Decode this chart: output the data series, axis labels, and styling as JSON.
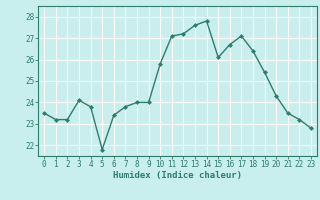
{
  "x": [
    0,
    1,
    2,
    3,
    4,
    5,
    6,
    7,
    8,
    9,
    10,
    11,
    12,
    13,
    14,
    15,
    16,
    17,
    18,
    19,
    20,
    21,
    22,
    23
  ],
  "y": [
    23.5,
    23.2,
    23.2,
    24.1,
    23.8,
    21.8,
    23.4,
    23.8,
    24.0,
    24.0,
    25.8,
    27.1,
    27.2,
    27.6,
    27.8,
    26.1,
    26.7,
    27.1,
    26.4,
    25.4,
    24.3,
    23.5,
    23.2,
    22.8
  ],
  "xlabel": "Humidex (Indice chaleur)",
  "ylim": [
    21.5,
    28.5
  ],
  "xlim": [
    -0.5,
    23.5
  ],
  "yticks": [
    22,
    23,
    24,
    25,
    26,
    27,
    28
  ],
  "xticks": [
    0,
    1,
    2,
    3,
    4,
    5,
    6,
    7,
    8,
    9,
    10,
    11,
    12,
    13,
    14,
    15,
    16,
    17,
    18,
    19,
    20,
    21,
    22,
    23
  ],
  "line_color": "#2e7d6e",
  "marker_color": "#2e7d6e",
  "bg_color": "#c8eeee",
  "grid_color": "#ffffff",
  "axis_color": "#2e7d6e",
  "xlabel_color": "#2e7d6e",
  "tick_color": "#2e7d6e",
  "font_family": "monospace"
}
